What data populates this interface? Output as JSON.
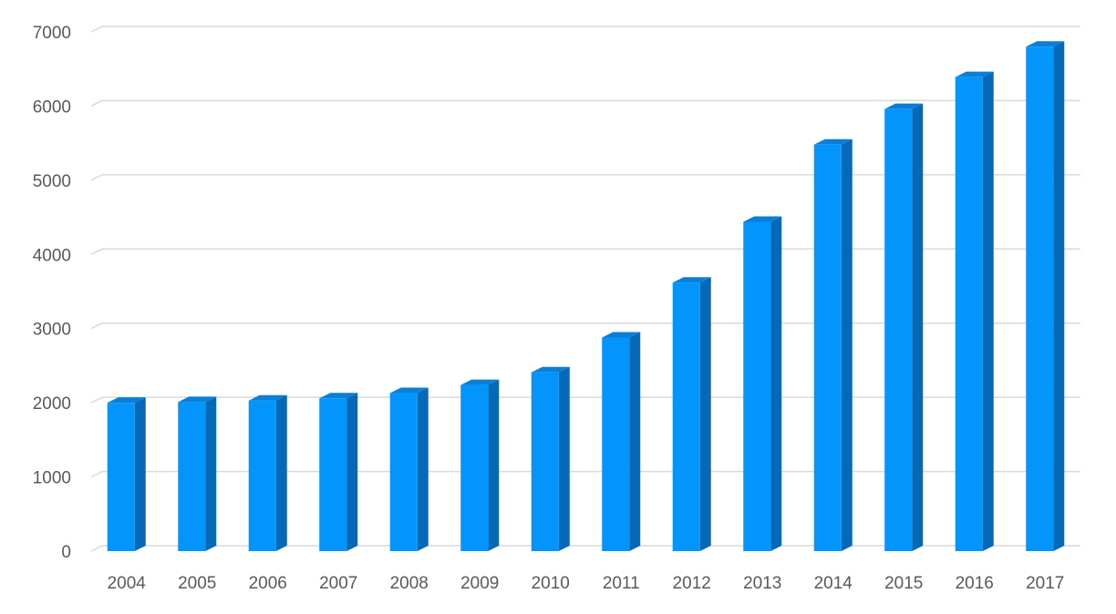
{
  "chart_data": {
    "type": "bar",
    "title": "",
    "xlabel": "",
    "ylabel": "",
    "categories": [
      "2004",
      "2005",
      "2006",
      "2007",
      "2008",
      "2009",
      "2010",
      "2011",
      "2012",
      "2013",
      "2014",
      "2015",
      "2016",
      "2017"
    ],
    "values": [
      2000,
      2010,
      2030,
      2060,
      2130,
      2240,
      2410,
      2880,
      3620,
      4440,
      5480,
      5960,
      6390,
      6800
    ],
    "ylim": [
      0,
      7000
    ],
    "yticks": [
      0,
      1000,
      2000,
      3000,
      4000,
      5000,
      6000,
      7000
    ],
    "ytick_labels": [
      "0",
      "1000",
      "2000",
      "3000",
      "4000",
      "5000",
      "6000",
      "7000"
    ],
    "grid": true,
    "legend": "none",
    "style": "3d-column"
  },
  "colors": {
    "bar_front": "#0394fc",
    "bar_side": "#0569b8",
    "bar_top": "#0a7fd9",
    "gridline": "#d9d9d9",
    "tick_text": "#595959"
  }
}
